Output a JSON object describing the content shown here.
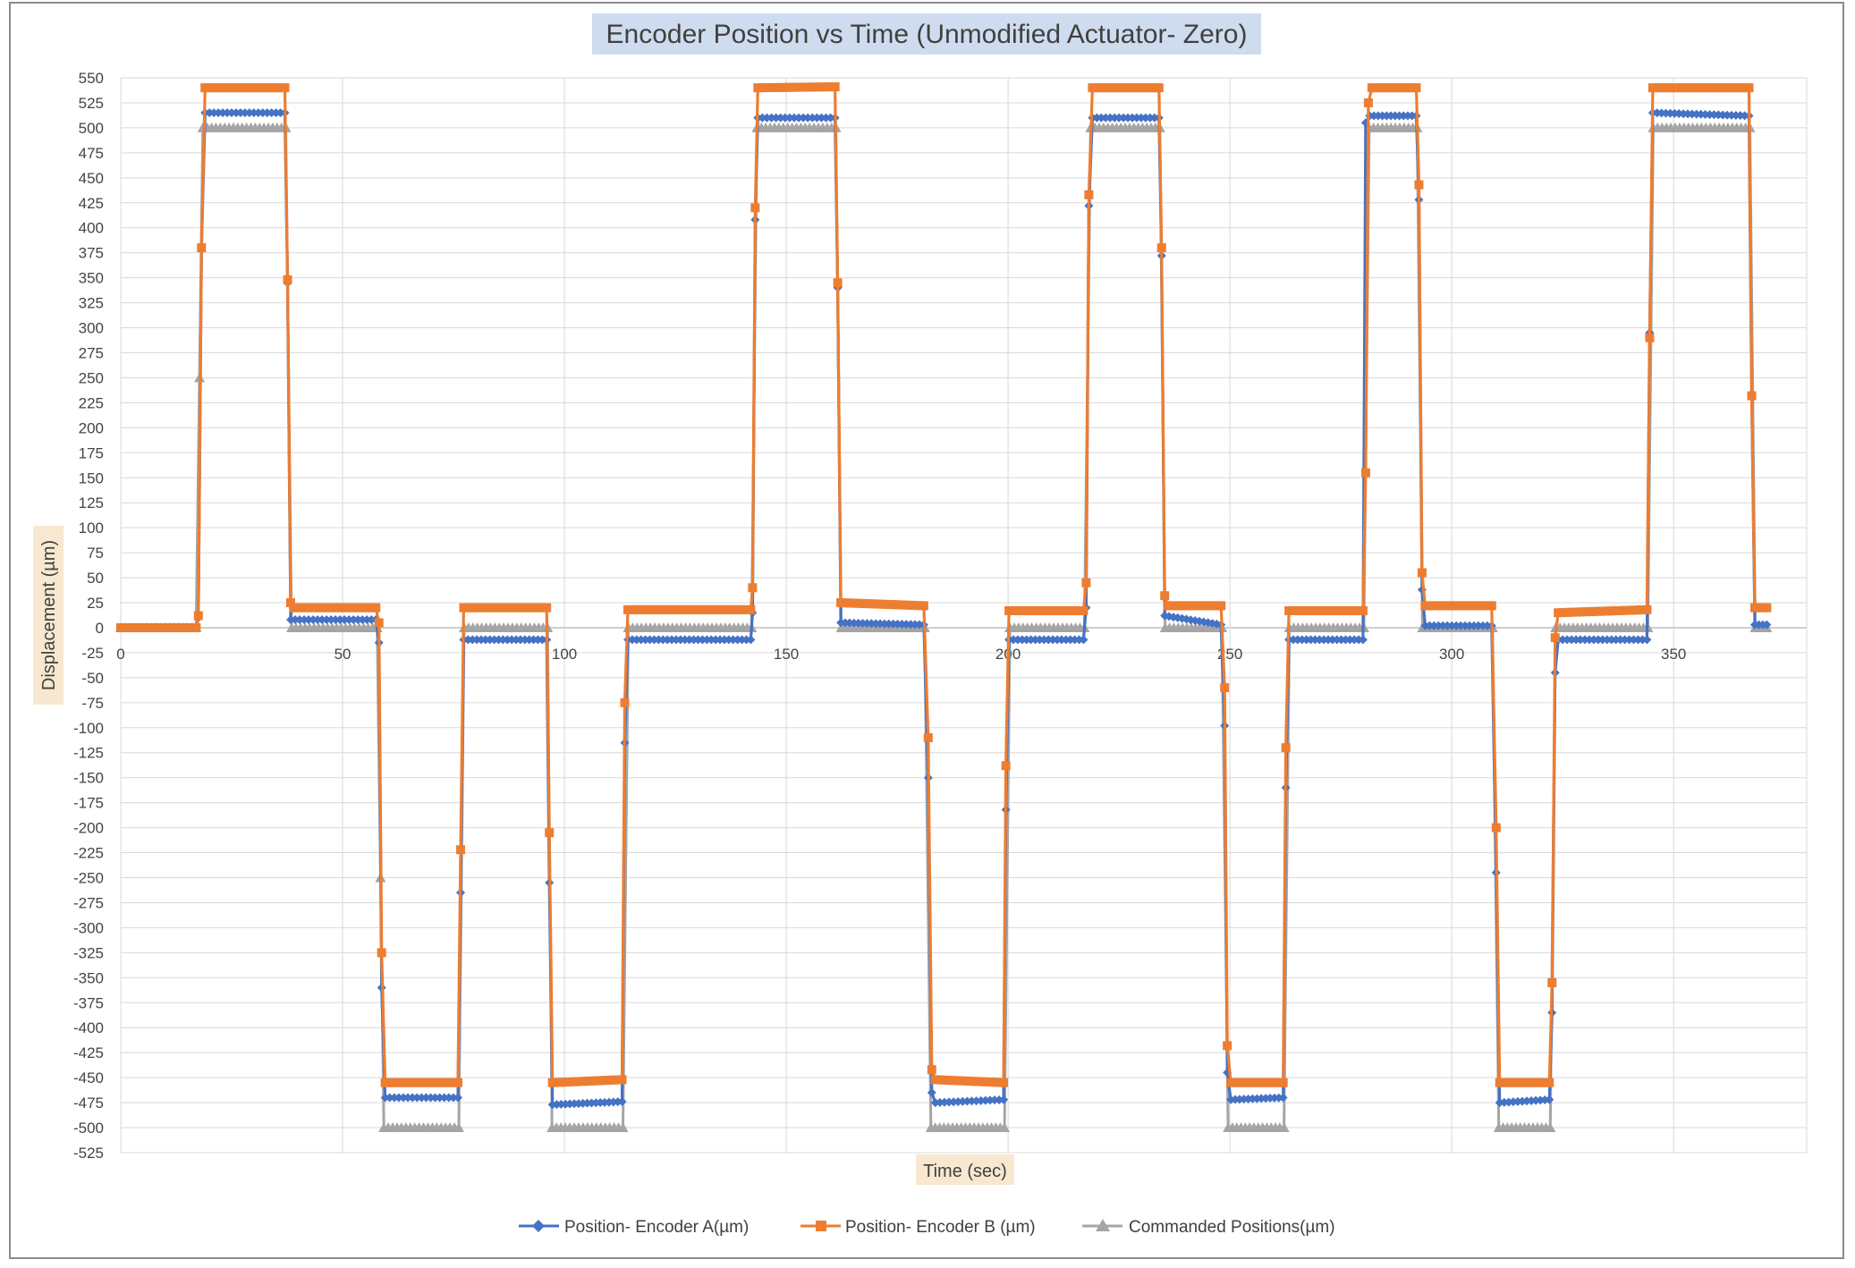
{
  "chart_data": {
    "type": "line",
    "title": "Encoder Position vs Time (Unmodified Actuator- Zero)",
    "xlabel": "Time (sec)",
    "ylabel": "Displacement (µm)",
    "xlim": [
      0,
      380
    ],
    "ylim": [
      -525,
      550
    ],
    "x_ticks": [
      0,
      50,
      100,
      150,
      200,
      250,
      300,
      350
    ],
    "y_ticks": [
      550,
      525,
      500,
      475,
      450,
      425,
      400,
      375,
      350,
      325,
      300,
      275,
      250,
      225,
      200,
      175,
      150,
      125,
      100,
      75,
      50,
      25,
      0,
      -25,
      -50,
      -75,
      -100,
      -125,
      -150,
      -175,
      -200,
      -225,
      -250,
      -275,
      -300,
      -325,
      -350,
      -375,
      -400,
      -425,
      -450,
      -475,
      -500,
      -525
    ],
    "grid": true,
    "legend_position": "bottom",
    "colors": {
      "a": "#4472C4",
      "b": "#ED7D31",
      "c": "#A5A5A5"
    },
    "series": [
      {
        "name": "Position- Encoder A(µm)",
        "marker": "diamond",
        "points": [
          [
            0,
            0
          ],
          [
            17,
            0
          ],
          [
            17.5,
            10
          ],
          [
            18.2,
            380
          ],
          [
            19,
            515
          ],
          [
            37,
            515
          ],
          [
            37.6,
            345
          ],
          [
            38.3,
            8
          ],
          [
            57.5,
            8
          ],
          [
            58.2,
            -15
          ],
          [
            58.8,
            -360
          ],
          [
            59.6,
            -470
          ],
          [
            76,
            -470
          ],
          [
            76.6,
            -265
          ],
          [
            77.3,
            -12
          ],
          [
            96,
            -12
          ],
          [
            96.6,
            -255
          ],
          [
            97.3,
            -477
          ],
          [
            113,
            -474
          ],
          [
            113.6,
            -115
          ],
          [
            114.3,
            -12
          ],
          [
            142,
            -12
          ],
          [
            142.4,
            15
          ],
          [
            143,
            408
          ],
          [
            143.6,
            510
          ],
          [
            161,
            510
          ],
          [
            161.6,
            340
          ],
          [
            162.3,
            5
          ],
          [
            181,
            3
          ],
          [
            182,
            -150
          ],
          [
            182.8,
            -465
          ],
          [
            183.6,
            -475
          ],
          [
            199,
            -472
          ],
          [
            199.5,
            -182
          ],
          [
            200.2,
            -12
          ],
          [
            217,
            -12
          ],
          [
            217.6,
            20
          ],
          [
            218.2,
            422
          ],
          [
            219,
            510
          ],
          [
            234,
            510
          ],
          [
            234.6,
            372
          ],
          [
            235.3,
            12
          ],
          [
            248,
            3
          ],
          [
            248.8,
            -98
          ],
          [
            249.4,
            -445
          ],
          [
            250.2,
            -472
          ],
          [
            262,
            -470
          ],
          [
            262.6,
            -160
          ],
          [
            263.3,
            -12
          ],
          [
            280,
            -12
          ],
          [
            280.6,
            505
          ],
          [
            281.5,
            512
          ],
          [
            292,
            512
          ],
          [
            292.6,
            428
          ],
          [
            293.3,
            38
          ],
          [
            294,
            2
          ],
          [
            309,
            2
          ],
          [
            310,
            -245
          ],
          [
            310.8,
            -475
          ],
          [
            322,
            -472
          ],
          [
            322.6,
            -385
          ],
          [
            323.3,
            -45
          ],
          [
            324,
            -12
          ],
          [
            344,
            -12
          ],
          [
            344.6,
            295
          ],
          [
            345.3,
            515
          ],
          [
            367,
            512
          ],
          [
            367.6,
            232
          ],
          [
            368.3,
            3
          ],
          [
            371,
            3
          ]
        ]
      },
      {
        "name": "Position- Encoder B (µm)",
        "marker": "square",
        "points": [
          [
            0,
            0
          ],
          [
            17,
            0
          ],
          [
            17.5,
            12
          ],
          [
            18.2,
            380
          ],
          [
            19,
            540
          ],
          [
            37,
            540
          ],
          [
            37.6,
            348
          ],
          [
            38.3,
            25
          ],
          [
            39,
            20
          ],
          [
            57.5,
            20
          ],
          [
            58.2,
            5
          ],
          [
            58.8,
            -325
          ],
          [
            59.6,
            -455
          ],
          [
            76,
            -455
          ],
          [
            76.6,
            -222
          ],
          [
            77.3,
            20
          ],
          [
            96,
            20
          ],
          [
            96.6,
            -205
          ],
          [
            97.3,
            -455
          ],
          [
            113,
            -452
          ],
          [
            113.6,
            -75
          ],
          [
            114.3,
            18
          ],
          [
            142,
            18
          ],
          [
            142.4,
            40
          ],
          [
            143,
            420
          ],
          [
            143.6,
            540
          ],
          [
            161,
            541
          ],
          [
            161.6,
            345
          ],
          [
            162.3,
            25
          ],
          [
            181,
            22
          ],
          [
            182,
            -110
          ],
          [
            182.8,
            -442
          ],
          [
            183.6,
            -452
          ],
          [
            199,
            -455
          ],
          [
            199.5,
            -138
          ],
          [
            200.2,
            17
          ],
          [
            217,
            17
          ],
          [
            217.6,
            45
          ],
          [
            218.2,
            433
          ],
          [
            219,
            540
          ],
          [
            234,
            540
          ],
          [
            234.6,
            380
          ],
          [
            235.3,
            32
          ],
          [
            236,
            22
          ],
          [
            248,
            22
          ],
          [
            248.8,
            -60
          ],
          [
            249.4,
            -418
          ],
          [
            250.2,
            -455
          ],
          [
            262,
            -455
          ],
          [
            262.6,
            -120
          ],
          [
            263.3,
            17
          ],
          [
            280,
            17
          ],
          [
            280.6,
            155
          ],
          [
            281.2,
            525
          ],
          [
            282,
            540
          ],
          [
            292,
            540
          ],
          [
            292.6,
            443
          ],
          [
            293.3,
            55
          ],
          [
            294,
            22
          ],
          [
            309,
            22
          ],
          [
            310,
            -200
          ],
          [
            310.8,
            -455
          ],
          [
            322,
            -455
          ],
          [
            322.6,
            -355
          ],
          [
            323.3,
            -10
          ],
          [
            324,
            15
          ],
          [
            344,
            18
          ],
          [
            344.6,
            290
          ],
          [
            345.3,
            540
          ],
          [
            367,
            540
          ],
          [
            367.6,
            232
          ],
          [
            368.3,
            20
          ],
          [
            371,
            20
          ]
        ]
      },
      {
        "name": "Commanded Positions(µm)",
        "marker": "triangle",
        "points": [
          [
            0,
            0
          ],
          [
            17,
            0
          ],
          [
            18.5,
            500
          ],
          [
            37.2,
            500
          ],
          [
            38.5,
            0
          ],
          [
            57.8,
            0
          ],
          [
            59.3,
            -500
          ],
          [
            76.2,
            -500
          ],
          [
            77.4,
            0
          ],
          [
            96.2,
            0
          ],
          [
            97.2,
            -500
          ],
          [
            113.2,
            -500
          ],
          [
            114.4,
            0
          ],
          [
            142.2,
            0
          ],
          [
            143.4,
            500
          ],
          [
            161.2,
            500
          ],
          [
            162.4,
            0
          ],
          [
            181.2,
            0
          ],
          [
            182.6,
            -500
          ],
          [
            199.2,
            -500
          ],
          [
            200.4,
            0
          ],
          [
            217.2,
            0
          ],
          [
            218.6,
            500
          ],
          [
            234.2,
            500
          ],
          [
            235.4,
            0
          ],
          [
            248.2,
            0
          ],
          [
            249.6,
            -500
          ],
          [
            262.2,
            -500
          ],
          [
            263.4,
            0
          ],
          [
            280.2,
            0
          ],
          [
            281.4,
            500
          ],
          [
            292.2,
            500
          ],
          [
            293.4,
            0
          ],
          [
            309.2,
            0
          ],
          [
            310.6,
            -500
          ],
          [
            322.2,
            -500
          ],
          [
            323.4,
            0
          ],
          [
            344.2,
            0
          ],
          [
            345.4,
            500
          ],
          [
            367.2,
            500
          ],
          [
            368.4,
            0
          ],
          [
            371,
            0
          ]
        ]
      }
    ]
  }
}
